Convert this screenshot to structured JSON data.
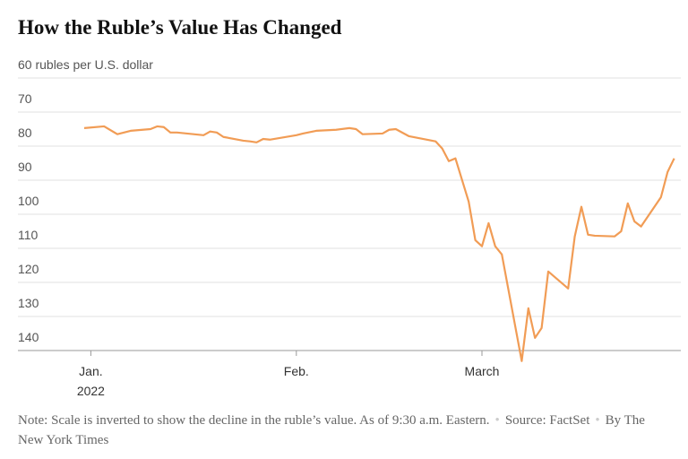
{
  "chart_data": {
    "type": "line",
    "title": "How the Ruble’s Value Has Changed",
    "x": [
      0,
      3,
      5,
      7,
      10,
      11,
      12,
      13,
      14,
      18,
      19,
      20,
      21,
      24,
      25,
      26,
      27,
      28,
      32,
      33,
      35,
      38,
      40,
      41,
      42,
      45,
      46,
      47,
      49,
      53,
      54,
      55,
      56,
      58,
      59,
      60,
      61,
      62,
      63,
      66,
      67,
      68,
      69,
      70,
      73,
      74,
      75,
      76,
      77,
      80,
      81,
      82,
      83,
      84,
      87,
      88,
      89
    ],
    "series": [
      {
        "color": "#f19c55",
        "values": [
          74.7,
          74.2,
          76.5,
          75.5,
          75,
          74.2,
          74.4,
          76,
          76,
          76.8,
          75.7,
          76,
          77.3,
          78.4,
          78.6,
          78.9,
          77.9,
          78.1,
          76.8,
          76.3,
          75.5,
          75.2,
          74.7,
          75,
          76.5,
          76.3,
          75.2,
          75,
          77.1,
          78.6,
          80.7,
          84.4,
          83.6,
          96.3,
          107.6,
          109.4,
          102.6,
          109.4,
          111.8,
          143.1,
          127.6,
          136.3,
          133.4,
          116.8,
          121.8,
          106.5,
          97.8,
          106,
          106.3,
          106.5,
          105,
          96.8,
          102.1,
          103.6,
          95,
          87.6,
          83.6
        ]
      }
    ],
    "xlim": [
      -10,
      90
    ],
    "xticks": [
      {
        "value": 1,
        "label": "Jan."
      },
      {
        "value": 32,
        "label": "Feb."
      },
      {
        "value": 60,
        "label": "March"
      }
    ],
    "year_label": "2022",
    "ylim": [
      140,
      60
    ],
    "inverted": true,
    "yticks": [
      {
        "value": 60,
        "label": "60 rubles per U.S. dollar"
      },
      70,
      80,
      90,
      100,
      110,
      120,
      130,
      140
    ],
    "grid": true,
    "note": "Note: Scale is inverted to show the decline in the ruble’s value. As of 9:30 a.m. Eastern.",
    "source": "Source: FactSet",
    "credit": "By The New York Times"
  }
}
